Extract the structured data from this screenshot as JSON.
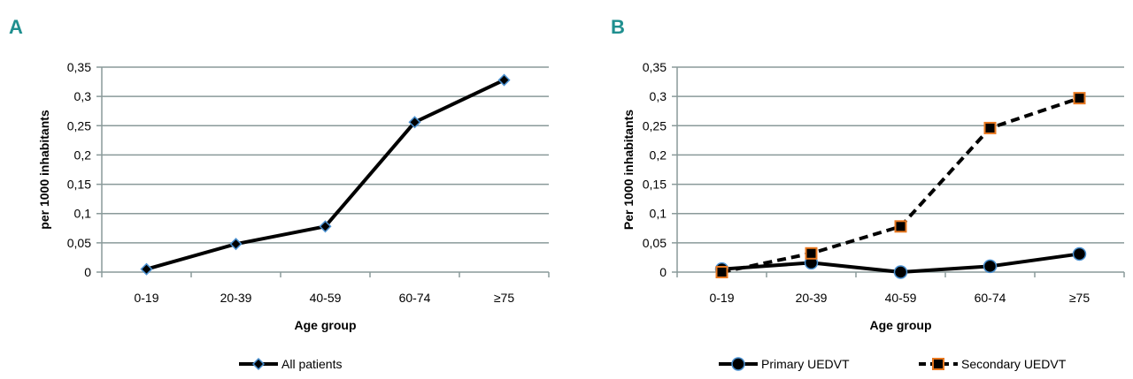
{
  "chart_data": [
    {
      "type": "line",
      "panel_label": "A",
      "categories": [
        "0-19",
        "20-39",
        "40-59",
        "60-74",
        "≥75"
      ],
      "series": [
        {
          "name": "All patients",
          "values": [
            0.005,
            0.048,
            0.078,
            0.256,
            0.328
          ],
          "marker": "diamond",
          "line": "solid"
        }
      ],
      "xlabel": "Age group",
      "ylabel": "per 1000 inhabitants",
      "ylim": [
        0,
        0.35
      ],
      "yticks": [
        "0",
        "0,05",
        "0,1",
        "0,15",
        "0,2",
        "0,25",
        "0,3",
        "0,35"
      ],
      "grid": true,
      "legend": "bottom"
    },
    {
      "type": "line",
      "panel_label": "B",
      "categories": [
        "0-19",
        "20-39",
        "40-59",
        "60-74",
        "≥75"
      ],
      "series": [
        {
          "name": "Primary UEDVT",
          "values": [
            0.005,
            0.016,
            0.0,
            0.01,
            0.031
          ],
          "marker": "circle",
          "line": "solid"
        },
        {
          "name": "Secondary UEDVT",
          "values": [
            0.0,
            0.032,
            0.078,
            0.246,
            0.297
          ],
          "marker": "square",
          "line": "dashed"
        }
      ],
      "xlabel": "Age group",
      "ylabel": "Per 1000 inhabitants",
      "ylim": [
        0,
        0.35
      ],
      "yticks": [
        "0",
        "0,05",
        "0,1",
        "0,15",
        "0,2",
        "0,25",
        "0,3",
        "0,35"
      ],
      "grid": true,
      "legend": "bottom"
    }
  ],
  "colors": {
    "panel_label": "#1f8f8f",
    "grid": "#8a9a9a",
    "line": "#000000",
    "marker_edge_blue": "#4a90d0",
    "marker_edge_orange": "#e87820"
  }
}
